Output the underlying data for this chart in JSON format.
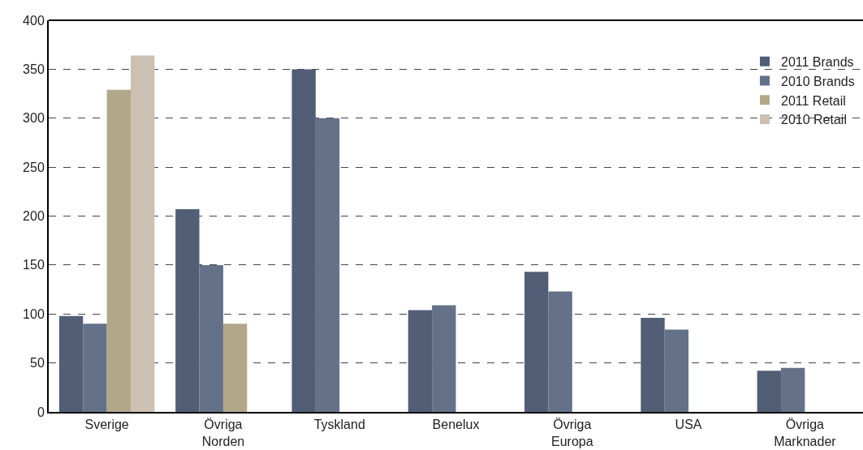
{
  "chart_data": {
    "type": "bar",
    "categories": [
      "Sverige",
      "Övriga\nNorden",
      "Tyskland",
      "Benelux",
      "Övriga\nEuropa",
      "USA",
      "Övriga\nMarknader"
    ],
    "series": [
      {
        "name": "2011 Brands",
        "color": "#525e76",
        "values": [
          98,
          207,
          350,
          104,
          143,
          96,
          42
        ]
      },
      {
        "name": "2010 Brands",
        "color": "#647189",
        "values": [
          90,
          150,
          300,
          109,
          123,
          84,
          45
        ]
      },
      {
        "name": "2011 Retail",
        "color": "#b1a889",
        "values": [
          329,
          90,
          null,
          null,
          null,
          null,
          null
        ]
      },
      {
        "name": "2010 Retail",
        "color": "#ccc0b3",
        "values": [
          364,
          null,
          null,
          null,
          null,
          null,
          null
        ]
      }
    ],
    "ylim": [
      0,
      400
    ],
    "yticks": [
      0,
      50,
      100,
      150,
      200,
      250,
      300,
      350,
      400
    ],
    "grid": "y",
    "legend": "top right"
  }
}
